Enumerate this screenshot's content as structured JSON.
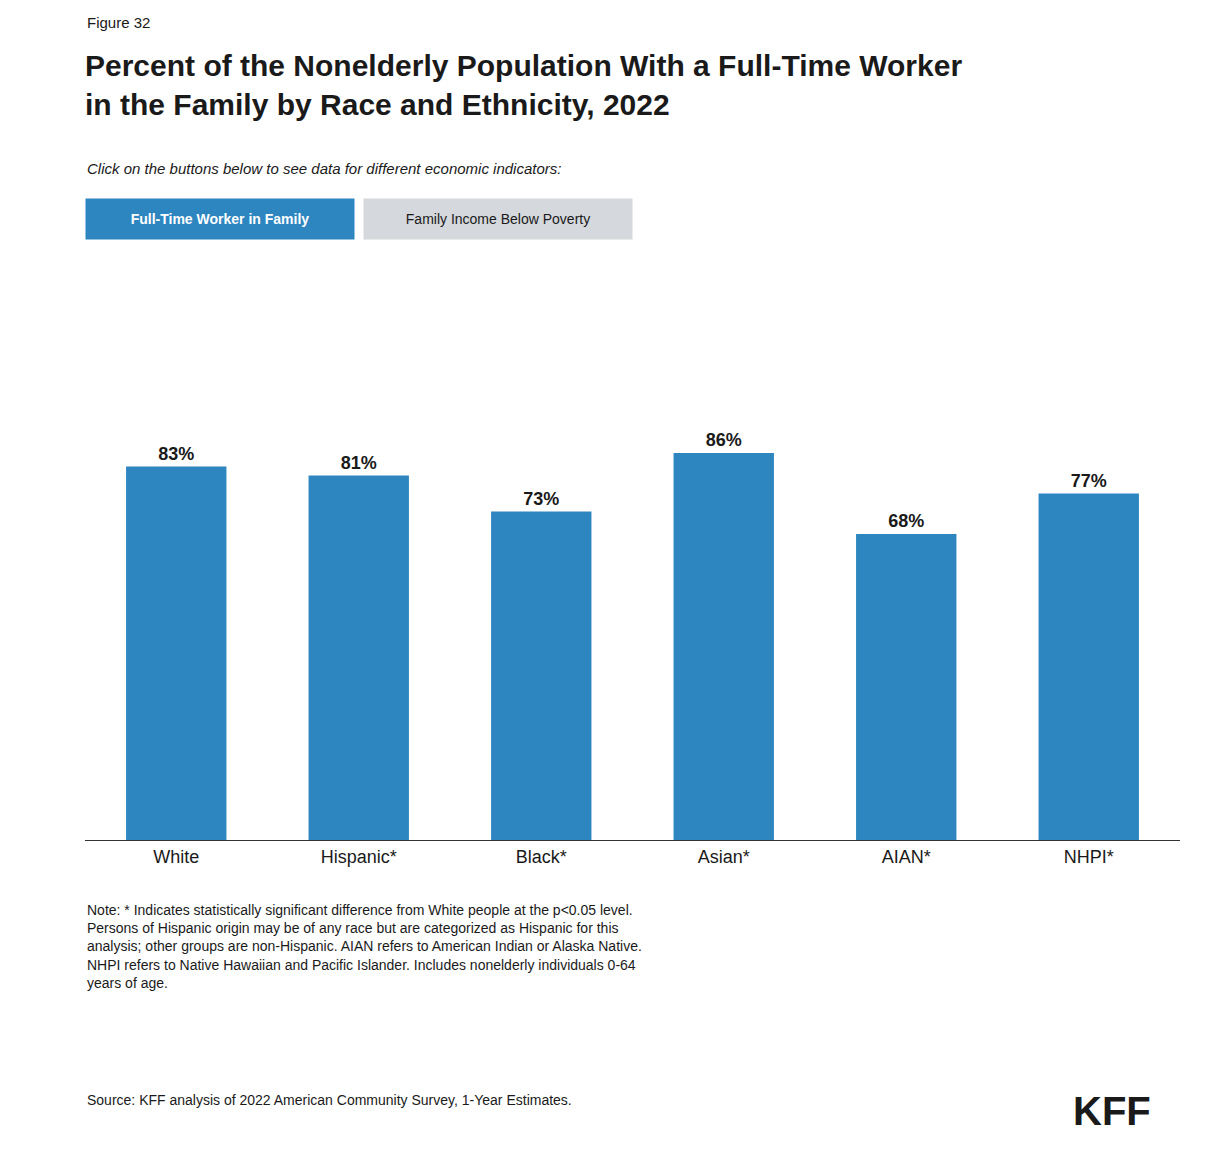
{
  "chart_data": {
    "type": "bar",
    "title": "Percent of the Nonelderly Population With a Full-Time Worker\nin the Family by Race and Ethnicity, 2022",
    "subtitle": "Click on the buttons below to see data for different economic indicators:",
    "annotations": [
      "Figure 32",
      "Full-Time Worker in Family",
      "Family Income Below Poverty",
      "Note: * Indicates statistically significant difference from White people at the p<0.05 level.\nPersons of Hispanic origin may be of any race but are categorized as Hispanic for this\nanalysis; other groups are non-Hispanic. AIAN refers to American Indian or Alaska Native.\nNHPI refers to Native Hawaiian and Pacific Islander. Includes nonelderly individuals 0-64\nyears of age.",
      "Source: KFF analysis of 2022 American Community Survey, 1-Year Estimates.",
      "KFF"
    ],
    "categories": [
      "White",
      "Hispanic*",
      "Black*",
      "Asian*",
      "AIAN*",
      "NHPI*"
    ],
    "values": [
      83,
      81,
      73,
      86,
      68,
      77
    ],
    "value_labels": [
      "83%",
      "81%",
      "73%",
      "86%",
      "68%",
      "77%"
    ],
    "color": "#2E86C1",
    "ylim": [
      0,
      100
    ],
    "grid": false,
    "data_labels": true,
    "tick_labels": "x"
  }
}
